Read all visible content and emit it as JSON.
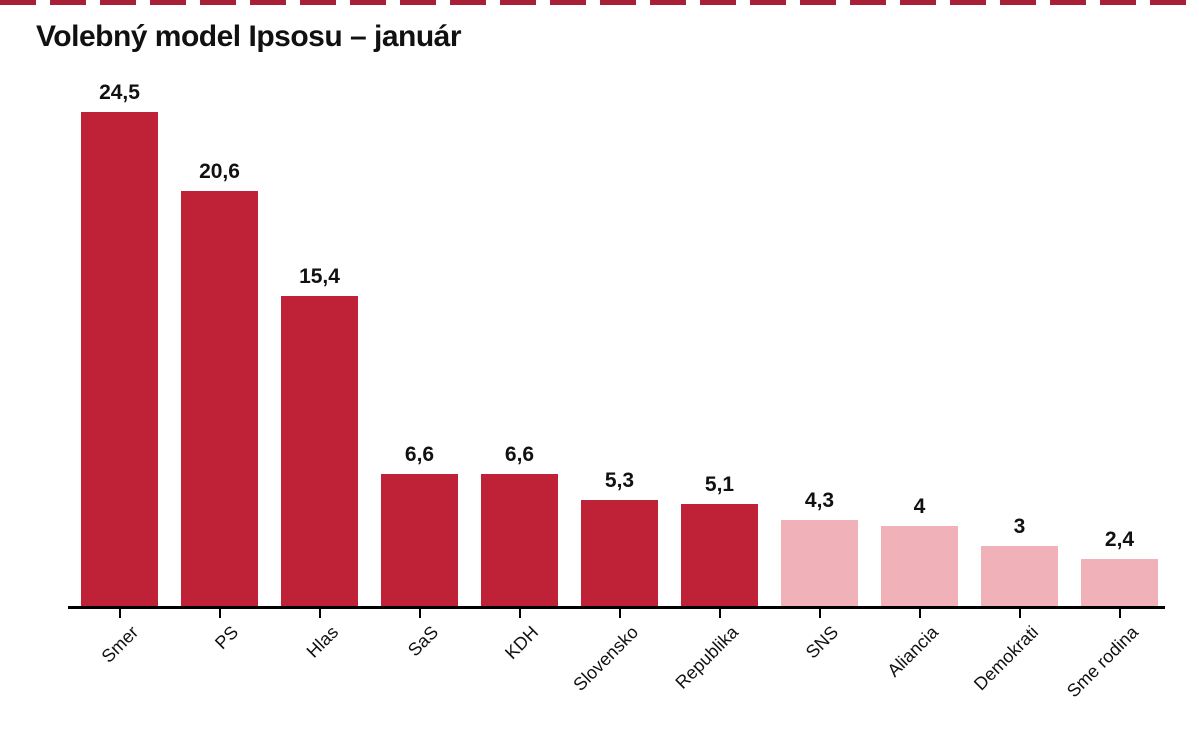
{
  "page": {
    "background": "#ffffff",
    "top_border": {
      "color": "#a82038",
      "style": "dashed"
    }
  },
  "chart_data": {
    "type": "bar",
    "title": "Volebný model Ipsosu – január",
    "categories": [
      "Smer",
      "PS",
      "Hlas",
      "SaS",
      "KDH",
      "Slovensko",
      "Republika",
      "SNS",
      "Aliancia",
      "Demokrati",
      "Sme rodina"
    ],
    "values": [
      24.5,
      20.6,
      15.4,
      6.6,
      6.6,
      5.3,
      5.1,
      4.3,
      4,
      3,
      2.4
    ],
    "value_labels": [
      "24,5",
      "20,6",
      "15,4",
      "6,6",
      "6,6",
      "5,3",
      "5,1",
      "4,3",
      "4",
      "3",
      "2,4"
    ],
    "bar_colors": [
      "#bf2137",
      "#bf2137",
      "#bf2137",
      "#bf2137",
      "#bf2137",
      "#bf2137",
      "#bf2137",
      "#f0b1b8",
      "#f0b1b8",
      "#f0b1b8",
      "#f0b1b8"
    ],
    "colors": {
      "above_threshold": "#bf2137",
      "below_threshold": "#f0b1b8",
      "axis": "#000000",
      "text": "#111111"
    },
    "xlabel": "",
    "ylabel": "",
    "ylim": [
      0,
      26
    ],
    "grid": false,
    "legend": false,
    "value_decimal_separator": ",",
    "category_label_rotation_deg": -45
  }
}
